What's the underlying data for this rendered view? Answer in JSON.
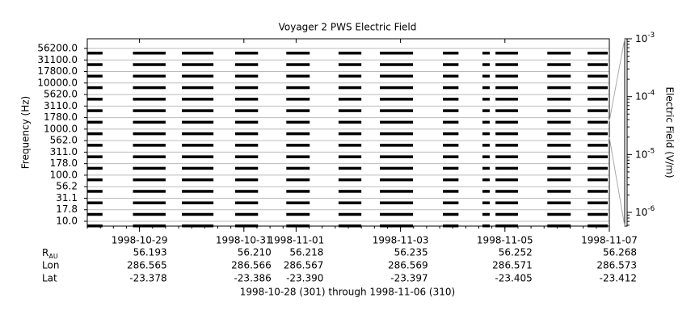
{
  "chart_data": {
    "type": "coverage",
    "title": "Voyager 2 PWS Electric Field",
    "ylabel": "Frequency (Hz)",
    "categories": [
      "56200.0",
      "31100.0",
      "17800.0",
      "10000.0",
      "5620.0",
      "3110.0",
      "1780.0",
      "1000.0",
      "562.0",
      "311.0",
      "178.0",
      "100.0",
      "56.2",
      "31.1",
      "17.8",
      "10.0"
    ],
    "xlim": [
      "1998-10-28T00:00",
      "1998-11-07T00:00"
    ],
    "xticks": [
      "1998-10-29",
      "1998-10-31",
      "1998-11-01",
      "1998-11-03",
      "1998-11-05",
      "1998-11-07"
    ],
    "segments": [
      {
        "start": "1998-10-28T00:00",
        "end": "1998-10-28T07:00"
      },
      {
        "start": "1998-10-28T21:00",
        "end": "1998-10-29T12:00"
      },
      {
        "start": "1998-10-29T19:30",
        "end": "1998-10-30T10:00"
      },
      {
        "start": "1998-10-30T20:00",
        "end": "1998-10-31T06:30"
      },
      {
        "start": "1998-10-31T19:30",
        "end": "1998-11-01T06:15"
      },
      {
        "start": "1998-11-01T19:30",
        "end": "1998-11-02T06:00"
      },
      {
        "start": "1998-11-02T14:30",
        "end": "1998-11-03T05:45"
      },
      {
        "start": "1998-11-03T19:30",
        "end": "1998-11-04T02:40"
      },
      {
        "start": "1998-11-04T13:40",
        "end": "1998-11-04T17:00"
      },
      {
        "start": "1998-11-04T19:40",
        "end": "1998-11-05T06:00"
      },
      {
        "start": "1998-11-05T19:30",
        "end": "1998-11-06T06:15"
      },
      {
        "start": "1998-11-06T14:00",
        "end": "1998-11-06T23:15"
      }
    ],
    "color": "#000000",
    "ephemeris": [
      {
        "name": "R",
        "sub": "AU",
        "values": [
          "56.193",
          "56.210",
          "56.218",
          "56.235",
          "56.252",
          "56.268"
        ]
      },
      {
        "name": "Lon",
        "values": [
          "286.565",
          "286.566",
          "286.567",
          "286.569",
          "286.571",
          "286.573"
        ]
      },
      {
        "name": "Lat",
        "values": [
          "-23.378",
          "-23.386",
          "-23.390",
          "-23.397",
          "-23.405",
          "-23.412"
        ]
      }
    ],
    "footer": "1998-10-28 (301) through 1998-11-06 (310)",
    "colorbar": {
      "label": "Electric Field (V/m)",
      "log": true,
      "zlim": [
        5.8e-07,
        0.001
      ],
      "ticks": [
        {
          "value": 0.001,
          "label": "10",
          "exp": "-3"
        },
        {
          "value": 0.0001,
          "label": "10",
          "exp": "-4"
        },
        {
          "value": 1e-05,
          "label": "10",
          "exp": "-5"
        },
        {
          "value": 1e-06,
          "label": "10",
          "exp": "-6"
        }
      ]
    }
  }
}
